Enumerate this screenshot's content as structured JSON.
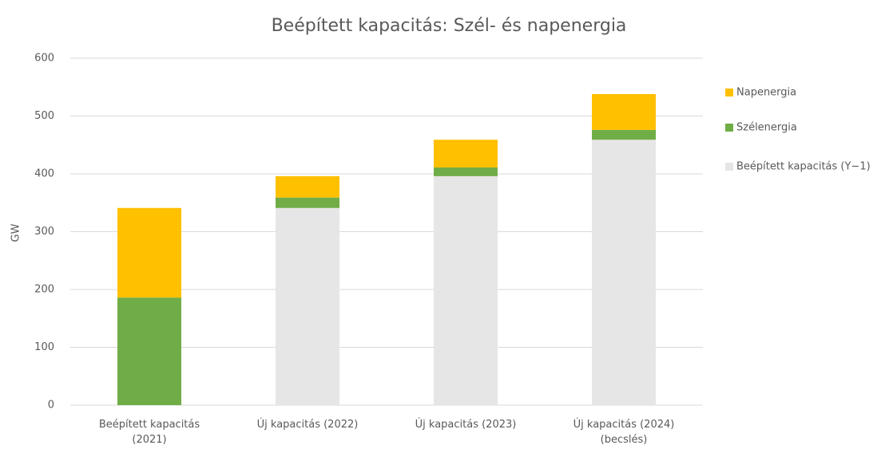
{
  "chart_data": {
    "type": "stacked_bar",
    "title": "Beépített kapacitás: Szél- és napenergia",
    "y_label": "GW",
    "categories": [
      "Beépített kapacitás (2021)",
      "Új kapacitás (2022)",
      "Új kapacitás (2023)",
      "Új kapacitás (2024) (becslés)"
    ],
    "series": [
      {
        "name": "Beépített kapacitás (Y−1)",
        "color": "#e7e6e6",
        "values": [
          0,
          341,
          396,
          459
        ]
      },
      {
        "name": "Szélenergia",
        "color": "#70ad47",
        "values": [
          186,
          18,
          15,
          17
        ]
      },
      {
        "name": "Napenergia",
        "color": "#ffc000",
        "values": [
          155,
          37,
          48,
          62
        ]
      }
    ],
    "ylim": [
      0,
      600
    ],
    "yticks": [
      0,
      100,
      200,
      300,
      400,
      500,
      600
    ],
    "grid": true,
    "legend": "right"
  }
}
